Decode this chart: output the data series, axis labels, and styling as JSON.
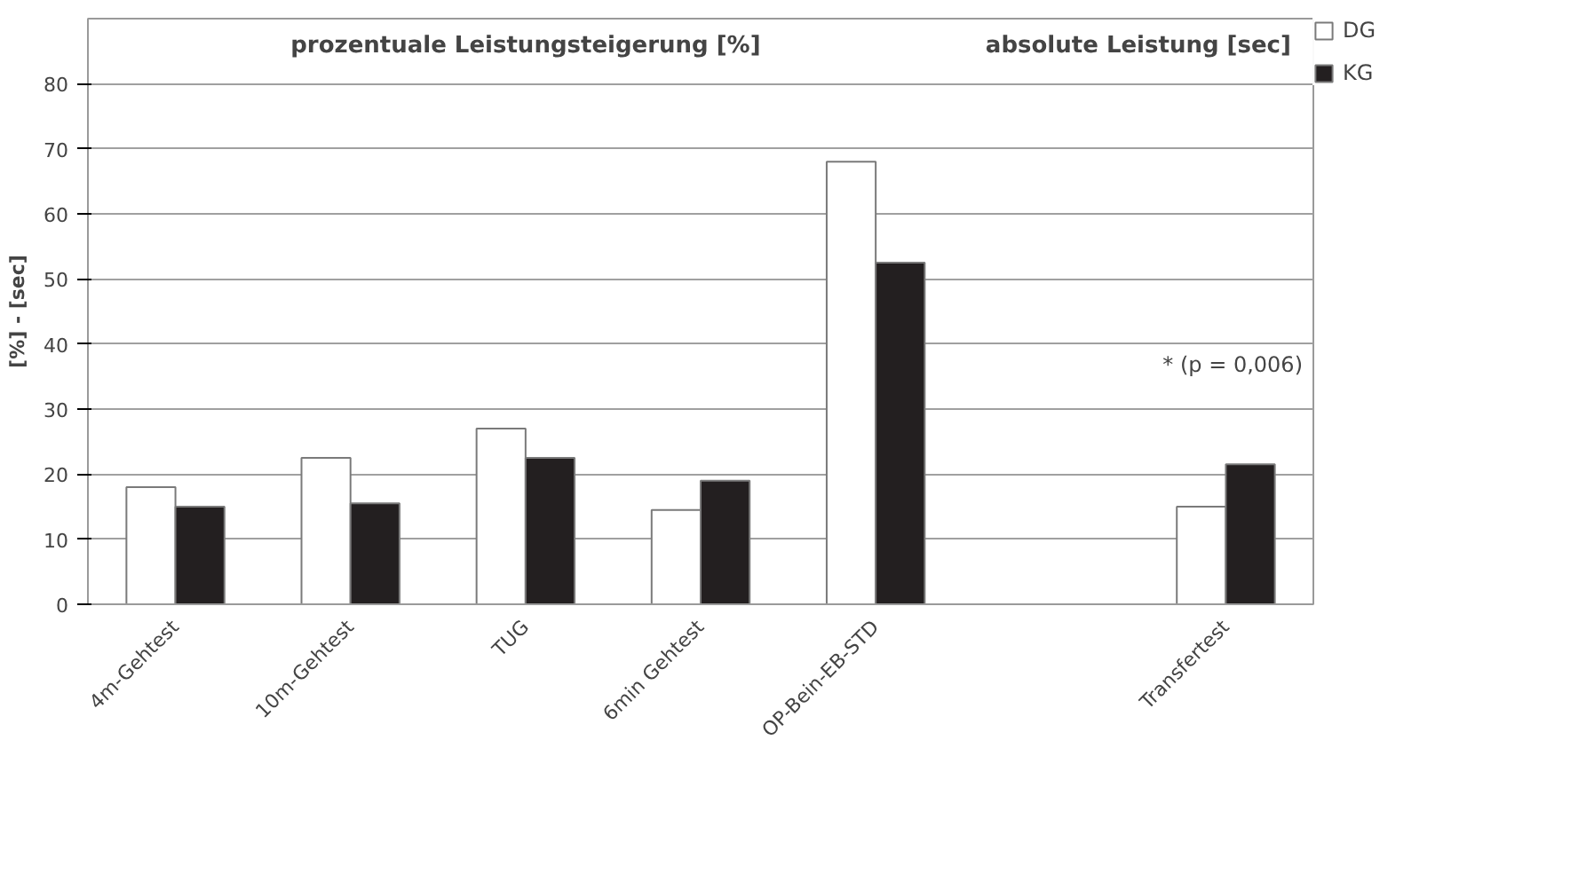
{
  "chart_data": {
    "type": "bar",
    "ylabel": "[%] - [sec]",
    "categories": [
      "4m-Gehtest",
      "10m-Gehtest",
      "TUG",
      "6min Gehtest",
      "OP-Bein-EB-STD",
      null,
      "Transfertest"
    ],
    "series": [
      {
        "name": "DG",
        "color": "#ffffff",
        "values": [
          18,
          22.5,
          27,
          14.5,
          68,
          null,
          15
        ]
      },
      {
        "name": "KG",
        "color": "#231f20",
        "values": [
          15,
          15.5,
          22.5,
          19,
          52.5,
          null,
          21.5
        ]
      }
    ],
    "ylim": [
      0,
      90
    ],
    "yticks": [
      0,
      10,
      20,
      30,
      40,
      50,
      60,
      70,
      80
    ],
    "grid": "y",
    "legend": "top right",
    "annotations": [
      "prozentuale Leistungsteigerung [%]",
      "absolute Leistung [sec]",
      "* (p = 0,006)"
    ]
  }
}
